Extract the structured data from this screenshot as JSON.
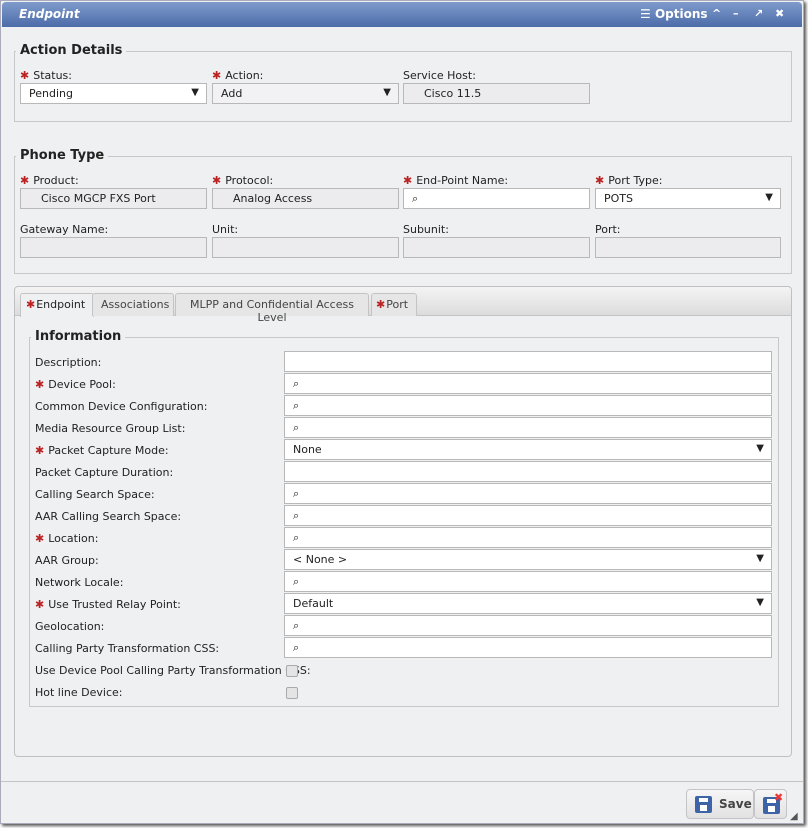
{
  "window": {
    "title": "Endpoint",
    "options_label": "Options"
  },
  "action_details": {
    "legend": "Action Details",
    "status": {
      "label": "Status:",
      "value": "Pending"
    },
    "action": {
      "label": "Action:",
      "value": "Add"
    },
    "service_host": {
      "label": "Service Host:",
      "value": "Cisco 11.5"
    }
  },
  "phone_type": {
    "legend": "Phone Type",
    "product": {
      "label": "Product:",
      "value": "Cisco MGCP FXS Port"
    },
    "protocol": {
      "label": "Protocol:",
      "value": "Analog Access"
    },
    "endpoint_name": {
      "label": "End-Point Name:",
      "value": ""
    },
    "port_type": {
      "label": "Port Type:",
      "value": "POTS"
    },
    "gateway_name": {
      "label": "Gateway Name:",
      "value": ""
    },
    "unit": {
      "label": "Unit:",
      "value": ""
    },
    "subunit": {
      "label": "Subunit:",
      "value": ""
    },
    "port": {
      "label": "Port:",
      "value": ""
    }
  },
  "tabs": [
    {
      "label": "Endpoint",
      "required": true,
      "active": true
    },
    {
      "label": "Associations"
    },
    {
      "label": "MLPP and Confidential Access Level"
    },
    {
      "label": "Port",
      "required": true
    }
  ],
  "information": {
    "legend": "Information",
    "rows": [
      {
        "label": "Description:",
        "type": "text",
        "value": ""
      },
      {
        "label": "Device Pool:",
        "type": "search",
        "required": true,
        "value": ""
      },
      {
        "label": "Common Device Configuration:",
        "type": "search",
        "value": ""
      },
      {
        "label": "Media Resource Group List:",
        "type": "search",
        "value": ""
      },
      {
        "label": "Packet Capture Mode:",
        "type": "select",
        "required": true,
        "value": "None"
      },
      {
        "label": "Packet Capture Duration:",
        "type": "text",
        "value": ""
      },
      {
        "label": "Calling Search Space:",
        "type": "search",
        "value": ""
      },
      {
        "label": "AAR Calling Search Space:",
        "type": "search",
        "value": ""
      },
      {
        "label": "Location:",
        "type": "search",
        "required": true,
        "value": ""
      },
      {
        "label": "AAR Group:",
        "type": "select",
        "value": "< None >"
      },
      {
        "label": "Network Locale:",
        "type": "search",
        "value": ""
      },
      {
        "label": "Use Trusted Relay Point:",
        "type": "select",
        "required": true,
        "value": "Default"
      },
      {
        "label": "Geolocation:",
        "type": "search",
        "value": ""
      },
      {
        "label": "Calling Party Transformation CSS:",
        "type": "search",
        "value": ""
      },
      {
        "label": "Use Device Pool Calling Party Transformation CSS:",
        "type": "checkbox",
        "checked": false
      },
      {
        "label": "Hot line Device:",
        "type": "checkbox",
        "checked": false
      }
    ]
  },
  "footer": {
    "save_label": "Save"
  }
}
